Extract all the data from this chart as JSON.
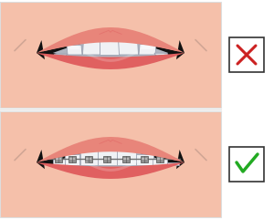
{
  "bg_color": "#ffffff",
  "face_color": "#f5c0aa",
  "lip_upper_color": "#e8857a",
  "lip_lower_color": "#e06060",
  "tooth_color": "#f0f2f5",
  "tooth_shadow_color": "#b0b5c0",
  "tooth_edge_color": "#9aa0b0",
  "dark_corner": "#1a1a1a",
  "gum_color": "#c05050",
  "brace_metal": "#909090",
  "brace_wire": "#707070",
  "brace_slot": "#b5b5b5",
  "brace_dark": "#505050",
  "wrinkle_color": "#c8a090",
  "panel_border": "#dddddd",
  "check_box_color": "#333333",
  "cross_color": "#cc2222",
  "check_color": "#22aa22",
  "top_panel": {
    "yb": 122,
    "yt": 238
  },
  "bot_panel": {
    "yb": 2,
    "yt": 118
  }
}
